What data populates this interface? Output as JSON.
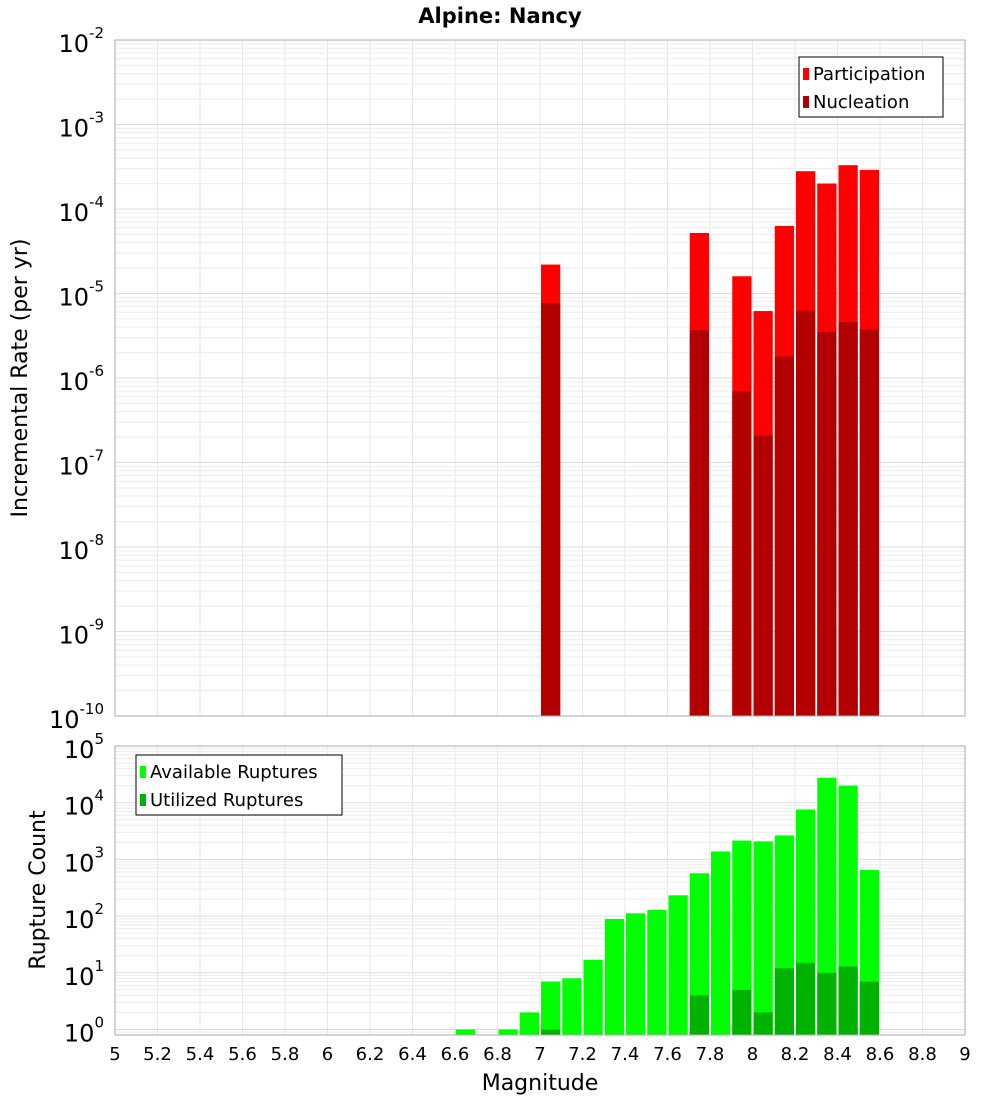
{
  "chart_data": [
    {
      "type": "bar",
      "title": "Alpine: Nancy",
      "xlabel": "Magnitude",
      "ylabel": "Incremental Rate (per yr)",
      "yscale": "log",
      "xlim": [
        5,
        9
      ],
      "ylim_exponents": [
        -10,
        -2
      ],
      "bin_width": 0.1,
      "grid": true,
      "legend_position": "top-right",
      "x": [
        7.05,
        7.75,
        7.95,
        8.05,
        8.15,
        8.25,
        8.35,
        8.45,
        8.55
      ],
      "series": [
        {
          "name": "Participation",
          "color": "#ff0000",
          "values": [
            2.2e-05,
            5.2e-05,
            1.6e-05,
            6.2e-06,
            6.3e-05,
            0.00028,
            0.0002,
            0.00033,
            0.00029
          ]
        },
        {
          "name": "Nucleation",
          "color": "#b20000",
          "values": [
            7.7e-06,
            3.7e-06,
            7e-07,
            2.1e-07,
            1.8e-06,
            6.3e-06,
            3.5e-06,
            4.6e-06,
            3.8e-06
          ]
        }
      ]
    },
    {
      "type": "bar",
      "title": "",
      "xlabel": "Magnitude",
      "ylabel": "Rupture Count",
      "yscale": "log",
      "xlim": [
        5,
        9
      ],
      "ylim": [
        0.8,
        100000
      ],
      "ylim_exponents": [
        0,
        5
      ],
      "bin_width": 0.1,
      "grid": true,
      "legend_position": "top-left",
      "x_tick_labels": [
        "5",
        "5.2",
        "5.4",
        "5.6",
        "5.8",
        "6",
        "6.2",
        "6.4",
        "6.6",
        "6.8",
        "7",
        "7.2",
        "7.4",
        "7.6",
        "7.8",
        "8",
        "8.2",
        "8.4",
        "8.6",
        "8.8",
        "9"
      ],
      "x": [
        6.65,
        6.85,
        6.95,
        7.05,
        7.15,
        7.25,
        7.35,
        7.45,
        7.55,
        7.65,
        7.75,
        7.85,
        7.95,
        8.05,
        8.15,
        8.25,
        8.35,
        8.45,
        8.55
      ],
      "series": [
        {
          "name": "Available Ruptures",
          "color": "#00ff00",
          "values": [
            1,
            1,
            2,
            7,
            8,
            17,
            89,
            112,
            128,
            233,
            570,
            1380,
            2150,
            2080,
            2650,
            7600,
            27600,
            20000,
            650
          ]
        },
        {
          "name": "Utilized Ruptures",
          "color": "#00b200",
          "values": [
            0,
            0,
            0,
            1,
            0,
            0,
            0,
            0,
            0,
            0,
            4,
            0,
            5,
            2,
            12,
            15,
            10,
            13,
            7
          ]
        }
      ]
    }
  ]
}
